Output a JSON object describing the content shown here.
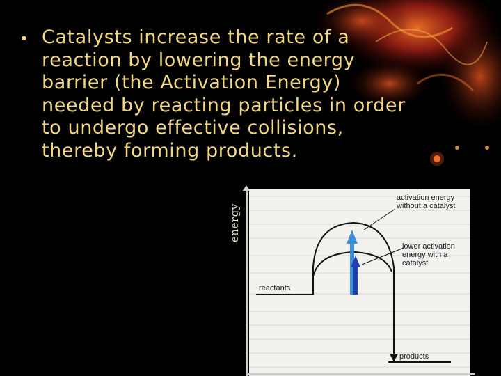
{
  "slide": {
    "bullet_marker": "•",
    "bullet_lines": [
      "Catalysts increase the rate of a",
      "reaction by lowering the energy",
      "barrier (the Activation Energy)",
      "needed by reacting particles in order",
      "to undergo effective collisions,",
      "thereby forming products."
    ]
  },
  "diagram": {
    "y_axis_label": "energy",
    "label_uncatalysed_line1": "activation energy",
    "label_uncatalysed_line2": "without a catalyst",
    "label_catalysed_line1": "lower activation",
    "label_catalysed_line2": "energy with a",
    "label_catalysed_line3": "catalyst",
    "label_reactants": "reactants",
    "label_products": "products",
    "colors": {
      "uncatalysed_arrow": "#3d8fd6",
      "catalysed_arrow": "#1f3fae",
      "curve": "#111111",
      "text": "#f2d884"
    }
  }
}
